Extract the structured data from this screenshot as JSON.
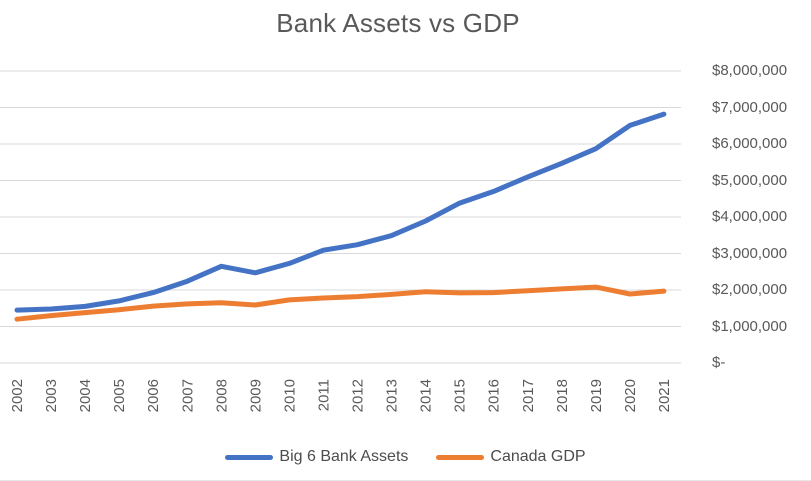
{
  "colors": {
    "background": "#ffffff",
    "gridline": "#d9d9d9",
    "axis_text": "#595959",
    "title_text": "#595959",
    "legend_text": "#4d4d4d",
    "series_big6": "#4472C4",
    "series_gdp": "#ED7D31"
  },
  "chart_data": {
    "type": "line",
    "title": "Bank Assets vs GDP",
    "xlabel": "",
    "ylabel": "",
    "categories": [
      "2002",
      "2003",
      "2004",
      "2005",
      "2006",
      "2007",
      "2008",
      "2009",
      "2010",
      "2011",
      "2012",
      "2013",
      "2014",
      "2015",
      "2016",
      "2017",
      "2018",
      "2019",
      "2020",
      "2021"
    ],
    "series": [
      {
        "name": "Big 6 Bank Assets",
        "color": "#4472C4",
        "values": [
          1450000,
          1480000,
          1550000,
          1700000,
          1930000,
          2240000,
          2650000,
          2470000,
          2730000,
          3090000,
          3240000,
          3490000,
          3890000,
          4380000,
          4700000,
          5100000,
          5470000,
          5870000,
          6510000,
          6820000
        ]
      },
      {
        "name": "Canada GDP",
        "color": "#ED7D31",
        "values": [
          1200000,
          1300000,
          1380000,
          1460000,
          1560000,
          1620000,
          1650000,
          1590000,
          1730000,
          1780000,
          1820000,
          1880000,
          1950000,
          1920000,
          1930000,
          1980000,
          2030000,
          2080000,
          1890000,
          1970000
        ]
      }
    ],
    "ylim": [
      0,
      8000000
    ],
    "y_tick_interval": 1000000,
    "y_tick_labels": [
      "$8,000,000",
      "$7,000,000",
      "$6,000,000",
      "$5,000,000",
      "$4,000,000",
      "$3,000,000",
      "$2,000,000",
      "$1,000,000",
      "$-"
    ],
    "y_axis_side": "right",
    "x_label_rotation": -90,
    "grid": true,
    "legend_position": "bottom"
  }
}
